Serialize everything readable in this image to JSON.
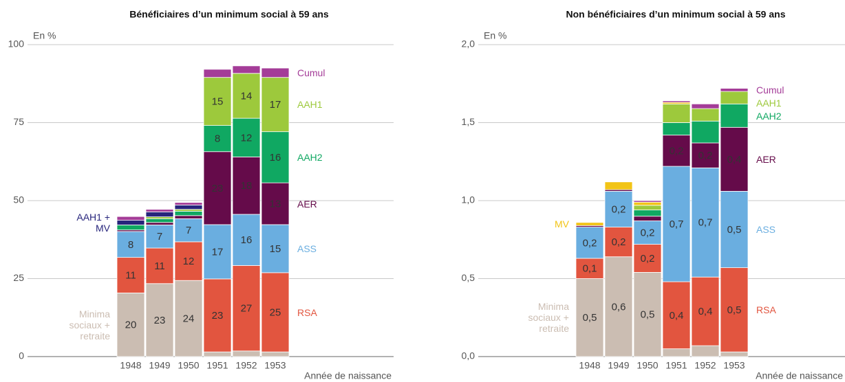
{
  "chart_data": [
    {
      "type": "bar",
      "stacked": true,
      "title": "Bénéficiaires d’un minimum social à 59 ans",
      "y_label": "En %",
      "x_label": "Année de naissance",
      "categories": [
        "1948",
        "1949",
        "1950",
        "1951",
        "1952",
        "1953"
      ],
      "ylim": [
        0,
        100
      ],
      "yticks": [
        0,
        25,
        50,
        75,
        100
      ],
      "grid": true,
      "series": [
        {
          "name": "Minima sociaux + retraite",
          "color": "#cbbdb2",
          "values": [
            20.4,
            23.4,
            24.4,
            1.5,
            1.8,
            1.5
          ],
          "value_labels": [
            "20",
            "23",
            "24",
            null,
            null,
            null
          ]
        },
        {
          "name": "RSA",
          "color": "#e2553f",
          "values": [
            11.4,
            11.4,
            12.4,
            23.4,
            27.4,
            25.4
          ],
          "value_labels": [
            "11",
            "11",
            "12",
            "23",
            "27",
            "25"
          ]
        },
        {
          "name": "ASS",
          "color": "#6aaee0",
          "values": [
            8.3,
            7.4,
            7.4,
            17.4,
            16.4,
            15.4
          ],
          "value_labels": [
            "8",
            "7",
            "7",
            "17",
            "16",
            "15"
          ]
        },
        {
          "name": "AER",
          "color": "#650b4a",
          "values": [
            0.5,
            0.8,
            1.0,
            23.4,
            18.4,
            13.4
          ],
          "value_labels": [
            null,
            null,
            null,
            "23",
            "18",
            "13"
          ]
        },
        {
          "name": "AAH2",
          "color": "#10a862",
          "values": [
            1.6,
            1.2,
            1.4,
            8.4,
            12.4,
            16.4
          ],
          "value_labels": [
            null,
            null,
            null,
            "8",
            "12",
            "16"
          ]
        },
        {
          "name": "AAH1",
          "color": "#9dc93c",
          "values": [
            0,
            0.6,
            0.6,
            15.4,
            14.4,
            17.4
          ],
          "value_labels": [
            null,
            null,
            null,
            "15",
            "14",
            "17"
          ]
        },
        {
          "name": "AAH1 + MV",
          "color": "#27257c",
          "values": [
            1.5,
            1.6,
            1.4,
            0,
            0,
            0
          ]
        },
        {
          "name": "Cumul",
          "color": "#a43c98",
          "values": [
            1.2,
            0.8,
            0.8,
            2.6,
            2.4,
            3.0
          ]
        }
      ]
    },
    {
      "type": "bar",
      "stacked": true,
      "title": "Non bénéficiaires d’un minimum social à 59 ans",
      "y_label": "En %",
      "x_label": "Année de naissance",
      "categories": [
        "1948",
        "1949",
        "1950",
        "1951",
        "1952",
        "1953"
      ],
      "ylim": [
        0,
        2
      ],
      "yticks": [
        {
          "value": 0,
          "label": "0,0"
        },
        {
          "value": 0.5,
          "label": "0,5"
        },
        {
          "value": 1,
          "label": "1,0"
        },
        {
          "value": 1.5,
          "label": "1,5"
        },
        {
          "value": 2,
          "label": "2,0"
        }
      ],
      "grid": true,
      "series": [
        {
          "name": "Minima sociaux + retraite",
          "color": "#cbbdb2",
          "values": [
            0.5,
            0.64,
            0.54,
            0.05,
            0.07,
            0.03
          ],
          "value_labels": [
            "0,5",
            "0,6",
            "0,5",
            null,
            null,
            null
          ]
        },
        {
          "name": "RSA",
          "color": "#e2553f",
          "values": [
            0.13,
            0.19,
            0.18,
            0.43,
            0.44,
            0.54
          ],
          "value_labels": [
            "0,1",
            "0,2",
            "0,2",
            "0,4",
            "0,4",
            "0,5"
          ]
        },
        {
          "name": "ASS",
          "color": "#6aaee0",
          "values": [
            0.2,
            0.23,
            0.15,
            0.74,
            0.7,
            0.49
          ],
          "value_labels": [
            "0,2",
            "0,2",
            "0,2",
            "0,7",
            "0,7",
            "0,5"
          ]
        },
        {
          "name": "AER",
          "color": "#650b4a",
          "values": [
            0.01,
            0.01,
            0.03,
            0.2,
            0.16,
            0.41
          ],
          "value_labels": [
            null,
            null,
            null,
            "0,2",
            "0,2",
            "0,4"
          ]
        },
        {
          "name": "AAH2",
          "color": "#10a862",
          "values": [
            0,
            0,
            0.04,
            0.08,
            0.14,
            0.15
          ]
        },
        {
          "name": "AAH1",
          "color": "#9dc93c",
          "values": [
            0,
            0,
            0.03,
            0.12,
            0.08,
            0.08
          ]
        },
        {
          "name": "MV",
          "color": "#f2c416",
          "values": [
            0.02,
            0.05,
            0.02,
            0.01,
            0,
            0
          ]
        },
        {
          "name": "Cumul",
          "color": "#a43c98",
          "values": [
            0,
            0,
            0.01,
            0.01,
            0.03,
            0.02
          ]
        }
      ]
    }
  ]
}
